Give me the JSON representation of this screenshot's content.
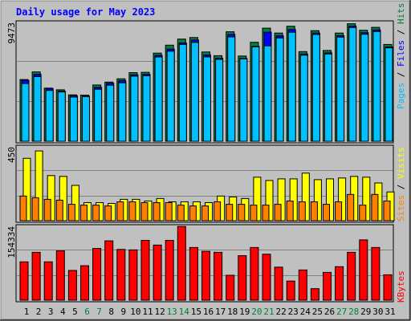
{
  "chart_data": [
    {
      "type": "bar",
      "title": "Daily usage for May 2023",
      "categories": [
        "1",
        "2",
        "3",
        "4",
        "5",
        "6",
        "7",
        "8",
        "9",
        "10",
        "11",
        "12",
        "13",
        "14",
        "15",
        "16",
        "17",
        "18",
        "19",
        "20",
        "21",
        "22",
        "23",
        "24",
        "25",
        "26",
        "27",
        "28",
        "29",
        "30",
        "31"
      ],
      "weekend_days": [
        "6",
        "7",
        "13",
        "14",
        "20",
        "21",
        "27",
        "28"
      ],
      "panels": [
        {
          "name": "hits-files-pages",
          "ylim": [
            0,
            9473
          ],
          "max_label": "9473",
          "grid": true,
          "series": [
            {
              "name": "Hits",
              "color": "#008040",
              "values": [
                4920,
                5530,
                4240,
                4100,
                3700,
                3680,
                4490,
                4720,
                4980,
                5470,
                5500,
                7030,
                7660,
                8150,
                8270,
                7120,
                6820,
                8730,
                6800,
                7890,
                9020,
                8630,
                9170,
                7150,
                8820,
                7240,
                8630,
                9370,
                8850,
                9080,
                7720
              ]
            },
            {
              "name": "Files",
              "color": "#0000ff",
              "values": [
                4850,
                5340,
                4200,
                4000,
                3630,
                3600,
                4300,
                4630,
                4840,
                5300,
                5340,
                6850,
                7350,
                7840,
                8070,
                6880,
                6620,
                8520,
                6600,
                7580,
                8700,
                8410,
                8910,
                6960,
                8630,
                7050,
                8420,
                9180,
                8660,
                8880,
                7520
              ]
            },
            {
              "name": "Pages",
              "color": "#00c0ff",
              "values": [
                4600,
                5150,
                4050,
                3930,
                3520,
                3550,
                4150,
                4470,
                4660,
                5190,
                5220,
                6720,
                7180,
                7720,
                7880,
                6730,
                6530,
                8320,
                6560,
                7530,
                7610,
                8240,
                8690,
                6860,
                8510,
                6960,
                8300,
                9070,
                8530,
                8750,
                7450
              ]
            }
          ]
        },
        {
          "name": "visits-sites",
          "ylim": [
            0,
            450
          ],
          "max_label": "450",
          "grid": true,
          "series": [
            {
              "name": "Visits",
              "color": "#ffff00",
              "values": [
                380,
                425,
                275,
                270,
                215,
                110,
                110,
                105,
                130,
                130,
                120,
                135,
                115,
                115,
                115,
                110,
                150,
                145,
                135,
                265,
                245,
                255,
                255,
                290,
                250,
                255,
                260,
                270,
                265,
                230,
                175
              ]
            },
            {
              "name": "Sites",
              "color": "#ff8000",
              "values": [
                150,
                140,
                130,
                125,
                100,
                95,
                95,
                90,
                115,
                115,
                110,
                110,
                110,
                95,
                90,
                90,
                115,
                100,
                100,
                95,
                95,
                100,
                120,
                115,
                115,
                100,
                115,
                160,
                95,
                160,
                120
              ]
            }
          ]
        },
        {
          "name": "kbytes",
          "ylim": [
            0,
            154334
          ],
          "max_label": "154334",
          "grid": true,
          "series": [
            {
              "name": "KBytes",
              "color": "#ff0000",
              "values": [
                80000,
                100000,
                80000,
                103000,
                62000,
                72000,
                108000,
                124000,
                106000,
                105000,
                125000,
                115000,
                125000,
                154000,
                110000,
                102000,
                100000,
                52000,
                93000,
                110000,
                96000,
                69000,
                40000,
                63000,
                24000,
                58000,
                70000,
                100000,
                126000,
                110000,
                53000
              ]
            }
          ]
        }
      ]
    }
  ]
}
